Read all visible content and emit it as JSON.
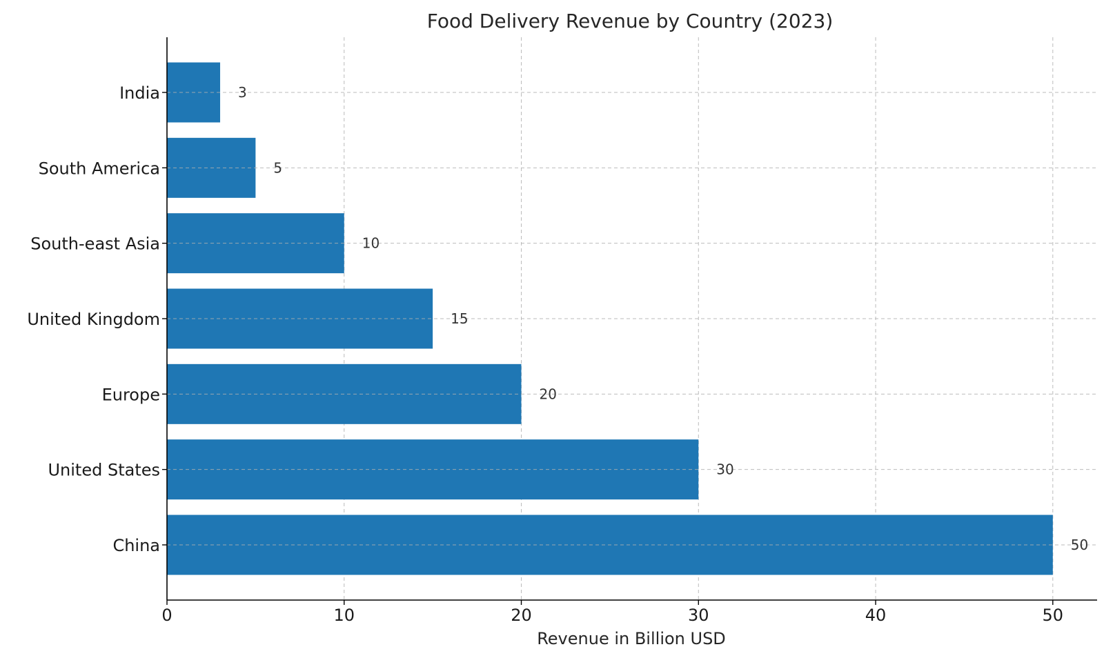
{
  "chart_data": {
    "type": "bar",
    "orientation": "horizontal",
    "title": "Food Delivery Revenue by Country (2023)",
    "xlabel": "Revenue in Billion USD",
    "ylabel": "",
    "categories": [
      "China",
      "United States",
      "Europe",
      "United Kingdom",
      "South-east Asia",
      "South America",
      "India"
    ],
    "values": [
      50,
      30,
      20,
      15,
      10,
      5,
      3
    ],
    "xlim": [
      0,
      52.5
    ],
    "xticks": [
      0,
      10,
      20,
      30,
      40,
      50
    ],
    "grid": true,
    "bar_color": "#1f77b4"
  }
}
